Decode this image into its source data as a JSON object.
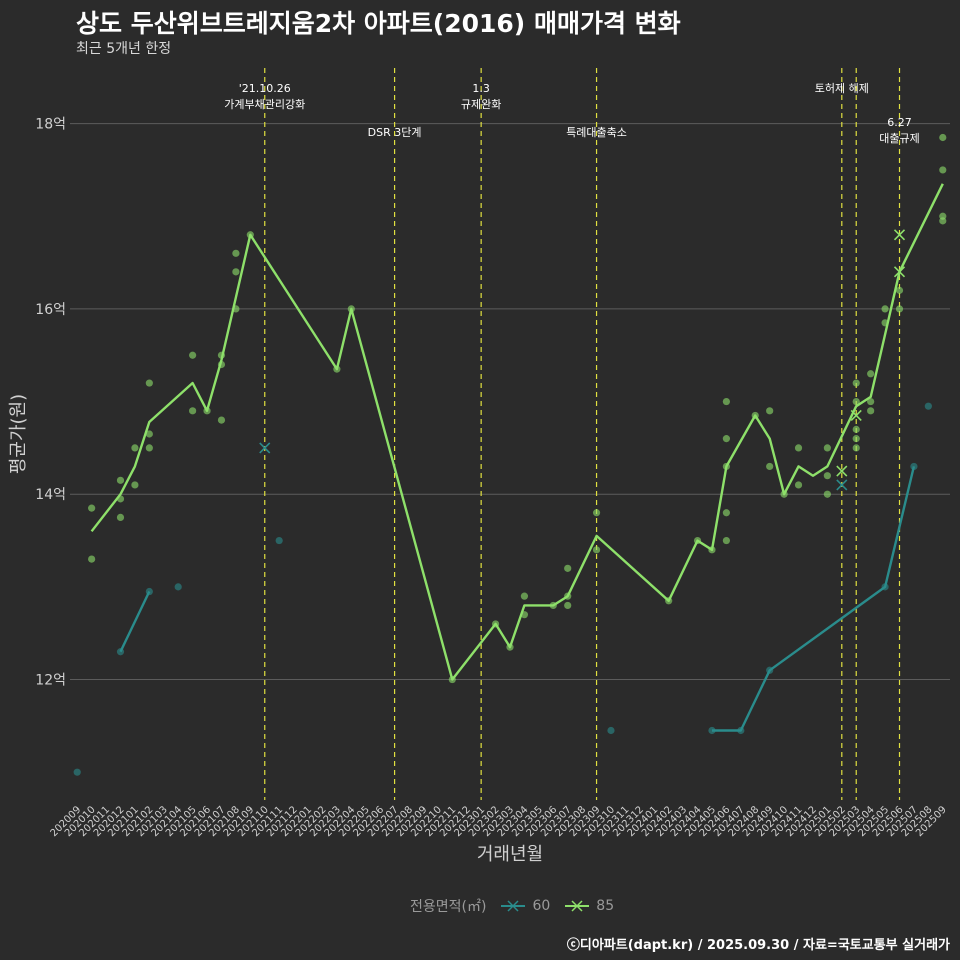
{
  "title": "상도 두산위브트레지움2차 아파트(2016) 매매가격 변화",
  "subtitle": "최근 5개년 한정",
  "caption": "ⓒ디아파트(dapt.kr) / 2025.09.30 / 자료=국토교통부 실거래가",
  "colors": {
    "background": "#2b2b2b",
    "grid": "#5c5c5c",
    "event_line": "#e0e040",
    "series_60": "#2a8c8c",
    "series_85": "#8ee06a"
  },
  "legend": {
    "title": "전용면적(㎡)",
    "items": [
      {
        "label": "60",
        "color": "#2a8c8c"
      },
      {
        "label": "85",
        "color": "#8ee06a"
      }
    ]
  },
  "chart_data": {
    "type": "line",
    "title": "상도 두산위브트레지움2차 아파트(2016) 매매가격 변화",
    "xlabel": "거래년월",
    "ylabel": "평균가(원)",
    "ylim": [
      10.7,
      18.6
    ],
    "yticks": [
      {
        "value": 12,
        "label": "12억"
      },
      {
        "value": 14,
        "label": "14억"
      },
      {
        "value": 16,
        "label": "16억"
      },
      {
        "value": 18,
        "label": "18억"
      }
    ],
    "categories": [
      "202009",
      "202010",
      "202011",
      "202012",
      "202101",
      "202102",
      "202103",
      "202104",
      "202105",
      "202106",
      "202107",
      "202108",
      "202109",
      "202110",
      "202111",
      "202112",
      "202201",
      "202202",
      "202203",
      "202204",
      "202205",
      "202206",
      "202207",
      "202208",
      "202209",
      "202210",
      "202211",
      "202212",
      "202301",
      "202302",
      "202303",
      "202304",
      "202305",
      "202306",
      "202307",
      "202308",
      "202309",
      "202310",
      "202311",
      "202312",
      "202401",
      "202402",
      "202403",
      "202404",
      "202405",
      "202406",
      "202407",
      "202408",
      "202409",
      "202410",
      "202411",
      "202412",
      "202501",
      "202502",
      "202503",
      "202504",
      "202505",
      "202506",
      "202507",
      "202508",
      "202509"
    ],
    "grid": true,
    "legend_position": "bottom",
    "events": [
      {
        "x": "202110",
        "label_lines": [
          "'21.10.26",
          "가계부채관리강화"
        ],
        "row": 1
      },
      {
        "x": "202207",
        "label_lines": [
          "DSR 3단계"
        ],
        "row": 2
      },
      {
        "x": "202301",
        "label_lines": [
          "1.3",
          "규제완화"
        ],
        "row": 1
      },
      {
        "x": "202309",
        "label_lines": [
          "특례대출축소"
        ],
        "row": 2
      },
      {
        "x": "202502",
        "label_lines": [
          "토허제 해제"
        ],
        "row": 1
      },
      {
        "x": "202503",
        "label_lines": [],
        "row": 1
      },
      {
        "x": "202506",
        "label_lines": [
          "6.27",
          "대출규제"
        ],
        "row": 3
      }
    ],
    "series": [
      {
        "name": "60",
        "color": "#2a8c8c",
        "line": [
          {
            "x": "202012",
            "y": 12.3
          },
          {
            "x": "202102",
            "y": 12.95
          }
        ],
        "line2": [
          {
            "x": "202405",
            "y": 11.45
          },
          {
            "x": "202407",
            "y": 11.45
          },
          {
            "x": "202409",
            "y": 12.1
          },
          {
            "x": "202505",
            "y": 13.0
          },
          {
            "x": "202507",
            "y": 14.3
          }
        ],
        "points": [
          {
            "x": "202009",
            "y": 11.0
          },
          {
            "x": "202012",
            "y": 12.3
          },
          {
            "x": "202102",
            "y": 12.95
          },
          {
            "x": "202104",
            "y": 13.0
          },
          {
            "x": "202111",
            "y": 13.5
          },
          {
            "x": "202310",
            "y": 11.45
          },
          {
            "x": "202405",
            "y": 11.45
          },
          {
            "x": "202407",
            "y": 11.45
          },
          {
            "x": "202409",
            "y": 12.1
          },
          {
            "x": "202505",
            "y": 13.0
          },
          {
            "x": "202507",
            "y": 14.3
          },
          {
            "x": "202508",
            "y": 14.95
          }
        ],
        "x_marks": [
          {
            "x": "202110",
            "y": 14.5
          },
          {
            "x": "202502",
            "y": 14.1
          }
        ]
      },
      {
        "name": "85",
        "color": "#8ee06a",
        "line": [
          {
            "x": "202010",
            "y": 13.6
          },
          {
            "x": "202012",
            "y": 14.0
          },
          {
            "x": "202101",
            "y": 14.3
          },
          {
            "x": "202102",
            "y": 14.78
          },
          {
            "x": "202105",
            "y": 15.2
          },
          {
            "x": "202106",
            "y": 14.9
          },
          {
            "x": "202107",
            "y": 15.45
          },
          {
            "x": "202109",
            "y": 16.8
          },
          {
            "x": "202203",
            "y": 15.35
          },
          {
            "x": "202204",
            "y": 16.0
          },
          {
            "x": "202211",
            "y": 12.0
          },
          {
            "x": "202302",
            "y": 12.6
          },
          {
            "x": "202303",
            "y": 12.35
          },
          {
            "x": "202304",
            "y": 12.8
          },
          {
            "x": "202306",
            "y": 12.8
          },
          {
            "x": "202307",
            "y": 12.9
          },
          {
            "x": "202309",
            "y": 13.55
          },
          {
            "x": "202402",
            "y": 12.85
          },
          {
            "x": "202404",
            "y": 13.5
          },
          {
            "x": "202405",
            "y": 13.4
          },
          {
            "x": "202406",
            "y": 14.3
          },
          {
            "x": "202408",
            "y": 14.85
          },
          {
            "x": "202409",
            "y": 14.6
          },
          {
            "x": "202410",
            "y": 14.0
          },
          {
            "x": "202411",
            "y": 14.3
          },
          {
            "x": "202412",
            "y": 14.2
          },
          {
            "x": "202501",
            "y": 14.3
          },
          {
            "x": "202503",
            "y": 14.95
          },
          {
            "x": "202504",
            "y": 15.05
          },
          {
            "x": "202506",
            "y": 16.4
          },
          {
            "x": "202509",
            "y": 17.35
          }
        ],
        "points": [
          {
            "x": "202010",
            "y": 13.85
          },
          {
            "x": "202010",
            "y": 13.3
          },
          {
            "x": "202012",
            "y": 14.15
          },
          {
            "x": "202012",
            "y": 13.95
          },
          {
            "x": "202012",
            "y": 13.75
          },
          {
            "x": "202101",
            "y": 14.5
          },
          {
            "x": "202101",
            "y": 14.1
          },
          {
            "x": "202102",
            "y": 15.2
          },
          {
            "x": "202102",
            "y": 14.65
          },
          {
            "x": "202102",
            "y": 14.5
          },
          {
            "x": "202105",
            "y": 15.5
          },
          {
            "x": "202105",
            "y": 14.9
          },
          {
            "x": "202106",
            "y": 14.9
          },
          {
            "x": "202107",
            "y": 15.5
          },
          {
            "x": "202107",
            "y": 15.4
          },
          {
            "x": "202107",
            "y": 14.8
          },
          {
            "x": "202108",
            "y": 16.6
          },
          {
            "x": "202108",
            "y": 16.4
          },
          {
            "x": "202108",
            "y": 16.0
          },
          {
            "x": "202109",
            "y": 16.8
          },
          {
            "x": "202203",
            "y": 15.35
          },
          {
            "x": "202204",
            "y": 16.0
          },
          {
            "x": "202211",
            "y": 12.0
          },
          {
            "x": "202302",
            "y": 12.6
          },
          {
            "x": "202303",
            "y": 12.35
          },
          {
            "x": "202304",
            "y": 12.9
          },
          {
            "x": "202304",
            "y": 12.7
          },
          {
            "x": "202306",
            "y": 12.8
          },
          {
            "x": "202307",
            "y": 13.2
          },
          {
            "x": "202307",
            "y": 12.9
          },
          {
            "x": "202307",
            "y": 12.8
          },
          {
            "x": "202309",
            "y": 13.8
          },
          {
            "x": "202309",
            "y": 13.4
          },
          {
            "x": "202402",
            "y": 12.85
          },
          {
            "x": "202404",
            "y": 13.5
          },
          {
            "x": "202405",
            "y": 13.4
          },
          {
            "x": "202406",
            "y": 15.0
          },
          {
            "x": "202406",
            "y": 14.6
          },
          {
            "x": "202406",
            "y": 14.3
          },
          {
            "x": "202406",
            "y": 13.8
          },
          {
            "x": "202406",
            "y": 13.5
          },
          {
            "x": "202408",
            "y": 14.85
          },
          {
            "x": "202409",
            "y": 14.9
          },
          {
            "x": "202409",
            "y": 14.3
          },
          {
            "x": "202410",
            "y": 14.0
          },
          {
            "x": "202411",
            "y": 14.5
          },
          {
            "x": "202411",
            "y": 14.1
          },
          {
            "x": "202501",
            "y": 14.5
          },
          {
            "x": "202501",
            "y": 14.2
          },
          {
            "x": "202501",
            "y": 14.0
          },
          {
            "x": "202503",
            "y": 15.2
          },
          {
            "x": "202503",
            "y": 15.0
          },
          {
            "x": "202503",
            "y": 14.7
          },
          {
            "x": "202503",
            "y": 14.6
          },
          {
            "x": "202503",
            "y": 14.5
          },
          {
            "x": "202504",
            "y": 15.3
          },
          {
            "x": "202504",
            "y": 15.0
          },
          {
            "x": "202504",
            "y": 14.9
          },
          {
            "x": "202505",
            "y": 16.0
          },
          {
            "x": "202505",
            "y": 15.85
          },
          {
            "x": "202506",
            "y": 16.2
          },
          {
            "x": "202506",
            "y": 16.0
          },
          {
            "x": "202509",
            "y": 17.85
          },
          {
            "x": "202509",
            "y": 17.5
          },
          {
            "x": "202509",
            "y": 17.0
          },
          {
            "x": "202509",
            "y": 16.95
          }
        ],
        "x_marks": [
          {
            "x": "202502",
            "y": 14.25
          },
          {
            "x": "202503",
            "y": 14.85
          },
          {
            "x": "202506",
            "y": 16.8
          },
          {
            "x": "202506",
            "y": 16.4
          }
        ]
      }
    ]
  }
}
